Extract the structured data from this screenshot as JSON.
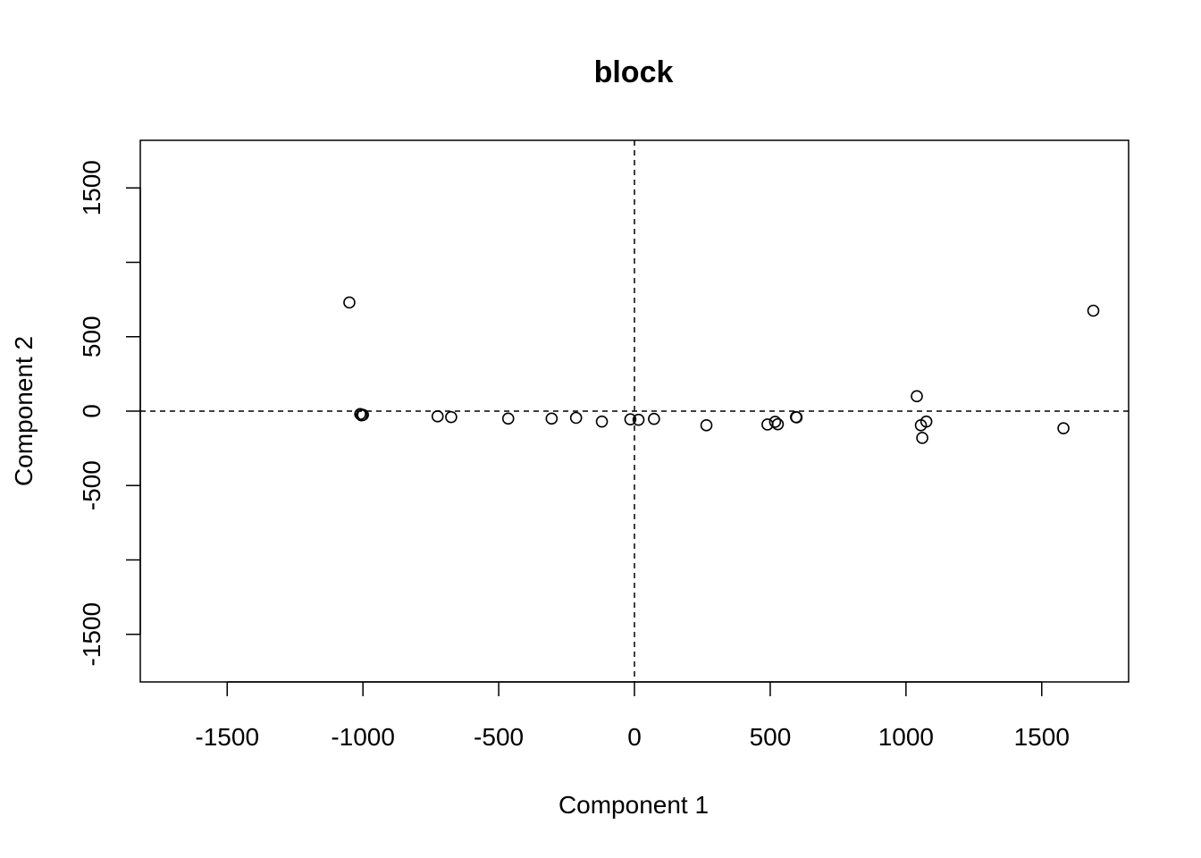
{
  "chart_data": {
    "type": "scatter",
    "title": "block",
    "xlabel": "Component 1",
    "ylabel": "Component 2",
    "xlim": [
      -1820,
      1820
    ],
    "ylim": [
      -1820,
      1820
    ],
    "xticks": [
      -1500,
      -1000,
      -500,
      0,
      500,
      1000,
      1500
    ],
    "xtick_labels": [
      "-1500",
      "-1000",
      "-500",
      "0",
      "500",
      "1000",
      "1500"
    ],
    "yticks": [
      -1500,
      -1000,
      -500,
      0,
      500,
      1000,
      1500
    ],
    "ytick_labels": [
      "-1500",
      "",
      "-500",
      "0",
      "500",
      "",
      "1500"
    ],
    "reference_lines": {
      "x": 0,
      "y": 0,
      "style": "dashed"
    },
    "grid": false,
    "marker": "open-circle",
    "points": [
      {
        "x": -1050,
        "y": 730
      },
      {
        "x": 1690,
        "y": 675
      },
      {
        "x": 1040,
        "y": 100
      },
      {
        "x": -1010,
        "y": -20
      },
      {
        "x": -1000,
        "y": -25
      },
      {
        "x": -1005,
        "y": -28
      },
      {
        "x": -725,
        "y": -35
      },
      {
        "x": -675,
        "y": -40
      },
      {
        "x": -465,
        "y": -50
      },
      {
        "x": -305,
        "y": -50
      },
      {
        "x": -215,
        "y": -45
      },
      {
        "x": -120,
        "y": -70
      },
      {
        "x": -15,
        "y": -55
      },
      {
        "x": 15,
        "y": -58
      },
      {
        "x": 72,
        "y": -52
      },
      {
        "x": 265,
        "y": -95
      },
      {
        "x": 490,
        "y": -90
      },
      {
        "x": 518,
        "y": -72
      },
      {
        "x": 528,
        "y": -88
      },
      {
        "x": 595,
        "y": -40
      },
      {
        "x": 597,
        "y": -42
      },
      {
        "x": 1055,
        "y": -95
      },
      {
        "x": 1075,
        "y": -70
      },
      {
        "x": 1060,
        "y": -180
      },
      {
        "x": 1580,
        "y": -115
      }
    ]
  }
}
